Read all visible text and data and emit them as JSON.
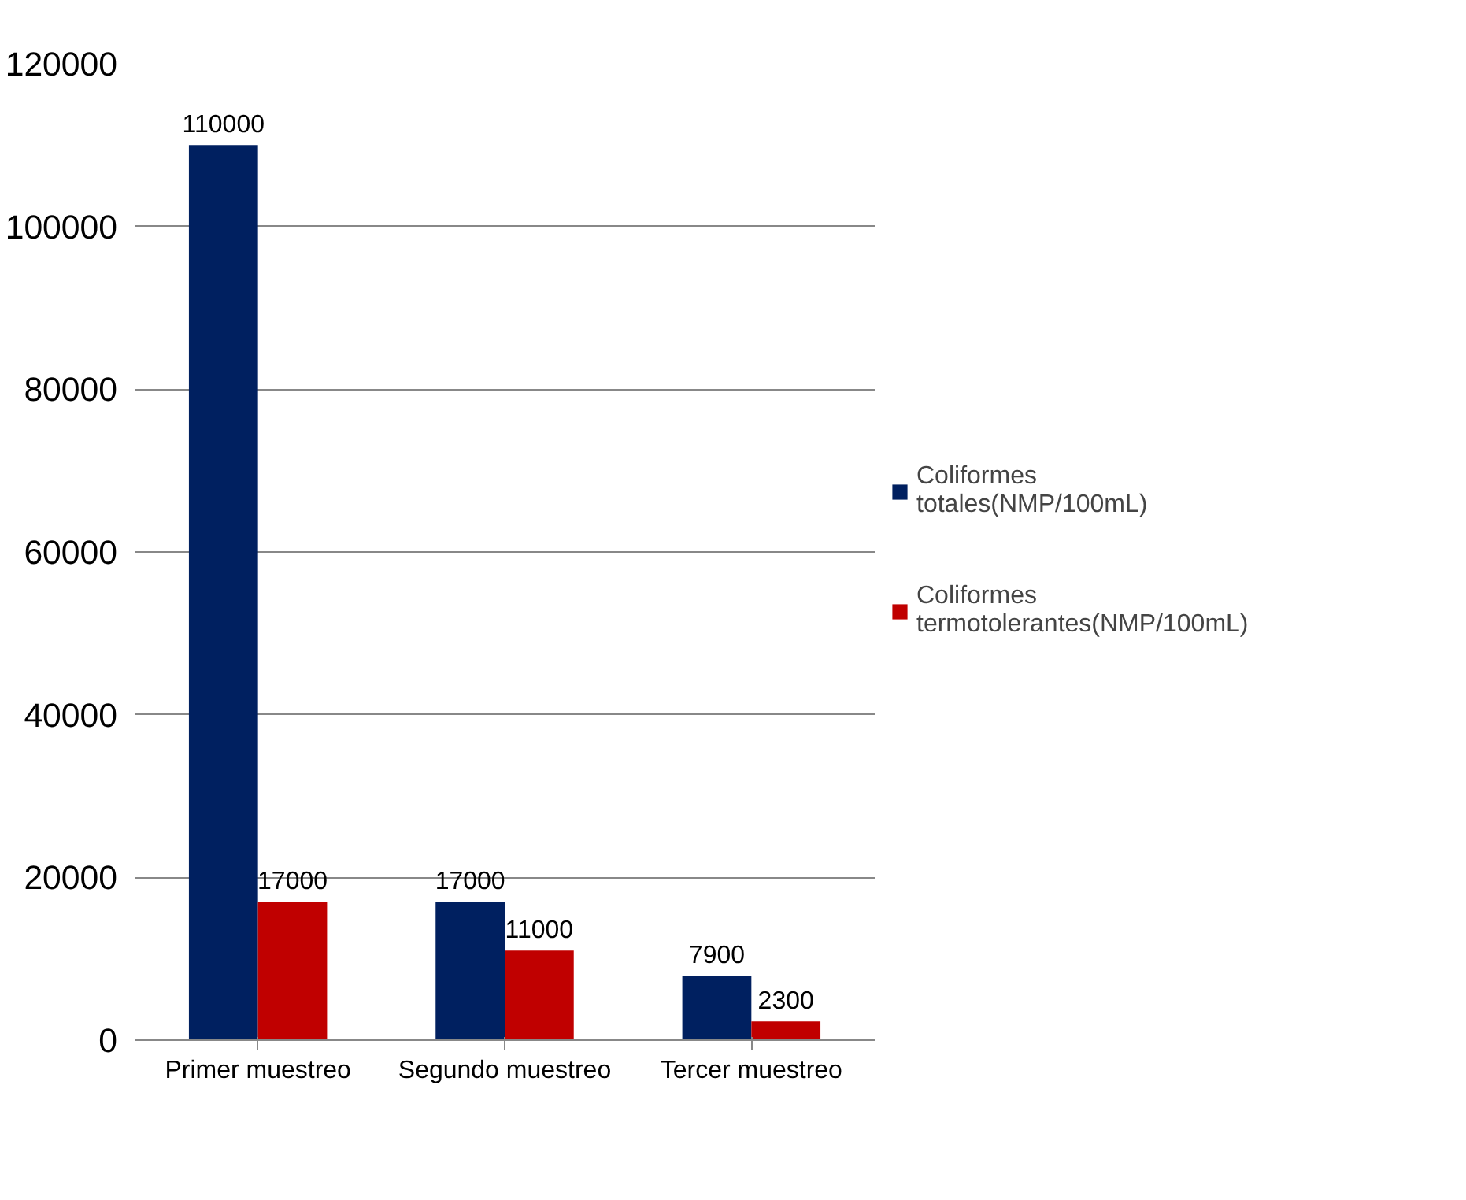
{
  "chart_data": {
    "type": "bar",
    "categories": [
      "Primer muestreo",
      "Segundo muestreo",
      "Tercer muestreo"
    ],
    "series": [
      {
        "name": "Coliformes totales(NMP/100mL)",
        "color": "#002060",
        "values": [
          110000,
          17000,
          7900
        ]
      },
      {
        "name": "Coliformes termotolerantes(NMP/100mL)",
        "color": "#c00000",
        "values": [
          17000,
          11000,
          2300
        ]
      }
    ],
    "ylim": [
      0,
      120000
    ],
    "yticks": [
      0,
      20000,
      40000,
      60000,
      80000,
      100000,
      120000
    ],
    "grid": "y",
    "legend": "right",
    "data_labels": true
  }
}
